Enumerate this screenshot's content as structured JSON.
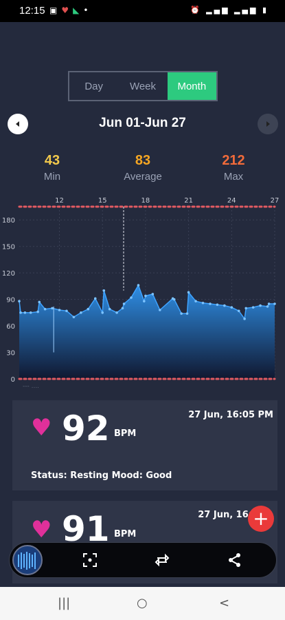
{
  "status_bar": {
    "time": "12:15",
    "left_icons": [
      "image-icon",
      "app-icon",
      "app-icon",
      "dot"
    ],
    "right_icons": [
      "alarm-icon",
      "vol-lte-icon",
      "signal-icon",
      "vol-lte-icon",
      "signal-icon",
      "battery-icon"
    ]
  },
  "tabs": [
    {
      "label": "Day",
      "active": false
    },
    {
      "label": "Week",
      "active": false
    },
    {
      "label": "Month",
      "active": true
    }
  ],
  "date_range": "Jun 01-Jun 27",
  "stats": {
    "min": {
      "value": "43",
      "label": "Min",
      "color": "#f2c94c"
    },
    "average": {
      "value": "83",
      "label": "Average",
      "color": "#f5a623"
    },
    "max": {
      "value": "212",
      "label": "Max",
      "color": "#f26b3a"
    }
  },
  "chart_data": {
    "type": "area",
    "x_ticks": [
      "12",
      "15",
      "18",
      "21",
      "24",
      "27"
    ],
    "y_ticks": [
      "0",
      "30",
      "60",
      "90",
      "120",
      "150",
      "180"
    ],
    "ylim": [
      0,
      195
    ],
    "x": [
      9.2,
      9.3,
      9.6,
      10,
      10.5,
      10.6,
      11,
      11.5,
      12,
      12.5,
      13,
      13.5,
      14,
      14.5,
      15,
      15.1,
      15.5,
      16,
      16.4,
      16.5,
      17,
      17.5,
      17.9,
      18,
      18.5,
      19,
      19.9,
      20,
      20.5,
      20.9,
      21,
      21.5,
      22,
      22.5,
      23,
      23.5,
      24,
      24.5,
      24.9,
      25,
      25.5,
      26,
      26.5,
      26.6,
      27
    ],
    "y": [
      88,
      75,
      75,
      75,
      76,
      87,
      79,
      80,
      78,
      77,
      70,
      75,
      79,
      91,
      75,
      100,
      79,
      75,
      80,
      85,
      92,
      106,
      88,
      94,
      96,
      78,
      91,
      90,
      74,
      74,
      98,
      88,
      86,
      85,
      84,
      83,
      81,
      77,
      68,
      80,
      81,
      83,
      82,
      85,
      85
    ],
    "reference_lines_dotted": [
      0,
      195
    ],
    "grid": true,
    "legend_partial": "--- ...."
  },
  "records": [
    {
      "bpm": "92",
      "unit": "BPM",
      "datetime": "27 Jun, 16:05 PM",
      "status": "Status: Resting  Mood: Good"
    },
    {
      "bpm": "91",
      "unit": "BPM",
      "datetime": "27 Jun, 16:0"
    }
  ],
  "fab_label": "+",
  "bottom_bar": {
    "icons": [
      "record-thumbnail",
      "scan-icon",
      "export-icon",
      "share-icon"
    ]
  },
  "system_nav": {
    "recents": "|||",
    "home": "○",
    "back": "<"
  },
  "colors": {
    "accent": "#2dca7f",
    "heart": "#e0309a",
    "fab": "#ea3a3a",
    "area_top": "#2f8fe6",
    "area_bottom": "#101830"
  }
}
